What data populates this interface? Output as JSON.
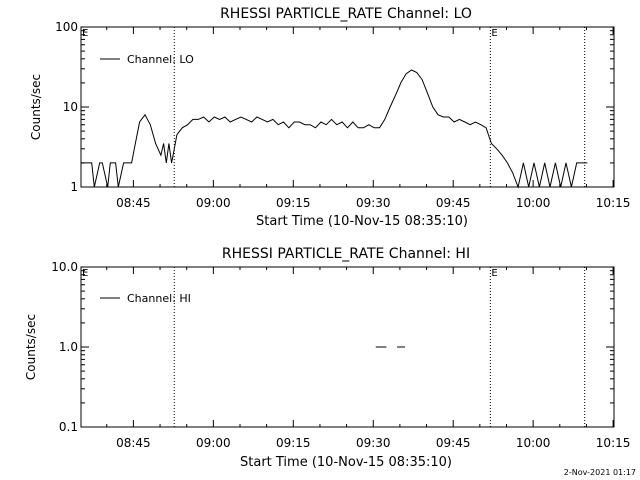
{
  "footer": {
    "timestamp": "2-Nov-2021 01:17"
  },
  "chart_data": [
    {
      "type": "line",
      "title": "RHESSI PARTICLE_RATE Channel: LO",
      "xlabel": "Start Time (10-Nov-15 08:35:10)",
      "ylabel": "Counts/sec",
      "yscale": "log",
      "ylim": [
        1,
        100
      ],
      "y_ticks": [
        1,
        10,
        100
      ],
      "y_tick_labels": [
        "1",
        "10",
        "100"
      ],
      "x_unit": "minutes from 08:35:10",
      "xlim": [
        0,
        100
      ],
      "x_ticks": [
        9.83,
        24.83,
        39.83,
        54.83,
        69.83,
        84.83,
        99.83
      ],
      "x_tick_labels": [
        "08:45",
        "09:00",
        "09:15",
        "09:30",
        "09:45",
        "10:00",
        "10:15"
      ],
      "legend": {
        "label": "Channel: LO",
        "placement": "top-left"
      },
      "vlines_dotted": [
        17.5,
        76.8,
        94.5
      ],
      "markers": [
        {
          "label": "E",
          "x": 0
        },
        {
          "label": "E",
          "x": 76.8
        }
      ],
      "series": [
        {
          "name": "Channel: LO",
          "x": [
            0,
            2,
            2.5,
            3.5,
            4,
            5,
            5.5,
            6.5,
            7,
            8,
            8.5,
            9.5,
            10,
            11,
            12,
            13,
            14,
            15,
            15.5,
            16,
            16.5,
            17,
            17.5,
            18,
            19,
            20,
            21,
            22,
            23,
            24,
            25,
            26,
            27,
            28,
            29,
            30,
            31,
            32,
            33,
            34,
            35,
            36,
            37,
            38,
            39,
            40,
            41,
            42,
            43,
            44,
            45,
            46,
            47,
            48,
            49,
            50,
            51,
            52,
            53,
            54,
            55,
            56,
            57,
            58,
            59,
            60,
            61,
            62,
            63,
            64,
            65,
            66,
            67,
            68,
            69,
            70,
            71,
            72,
            73,
            74,
            75,
            76,
            77,
            78,
            79,
            80,
            81,
            82,
            83,
            84,
            85,
            86,
            87,
            88,
            89,
            90,
            91,
            92,
            93,
            94,
            95
          ],
          "y": [
            2,
            2,
            1,
            2,
            2,
            1,
            2,
            2,
            1,
            2,
            2,
            2,
            3,
            6.5,
            8,
            6,
            3.5,
            2.5,
            3.5,
            2,
            3.5,
            2,
            3,
            4.5,
            5.5,
            6,
            7,
            7,
            7.5,
            6.5,
            7.5,
            7,
            7.5,
            6.5,
            7,
            7.5,
            7,
            6.5,
            7.5,
            7,
            6.5,
            7,
            6,
            6.5,
            5.5,
            6.5,
            6.5,
            6,
            6,
            5.5,
            6.5,
            6,
            7,
            6,
            6.5,
            5.5,
            6.5,
            5.5,
            5.5,
            6,
            5.5,
            5.5,
            7,
            10,
            14,
            20,
            26,
            29,
            27,
            22,
            15,
            10,
            8,
            7.5,
            7.5,
            6.5,
            7,
            6.5,
            6,
            6.5,
            6,
            5.5,
            3.5,
            3,
            2.5,
            2,
            1.5,
            1,
            2,
            1,
            2,
            1,
            2,
            1,
            2,
            1,
            2,
            1,
            2,
            2,
            2
          ]
        }
      ]
    },
    {
      "type": "line",
      "title": "RHESSI PARTICLE_RATE Channel: HI",
      "xlabel": "Start Time (10-Nov-15 08:35:10)",
      "ylabel": "Counts/sec",
      "yscale": "log",
      "ylim": [
        0.1,
        10
      ],
      "y_ticks": [
        0.1,
        1,
        10
      ],
      "y_tick_labels": [
        "0.1",
        "1.0",
        "10.0"
      ],
      "x_unit": "minutes from 08:35:10",
      "xlim": [
        0,
        100
      ],
      "x_ticks": [
        9.83,
        24.83,
        39.83,
        54.83,
        69.83,
        84.83,
        99.83
      ],
      "x_tick_labels": [
        "08:45",
        "09:00",
        "09:15",
        "09:30",
        "09:45",
        "10:00",
        "10:15"
      ],
      "legend": {
        "label": "Channel: HI",
        "placement": "top-left"
      },
      "vlines_dotted": [
        17.5,
        76.8,
        94.5
      ],
      "markers": [
        {
          "label": "E",
          "x": 0
        },
        {
          "label": "E",
          "x": 76.8
        }
      ],
      "series": [
        {
          "name": "Channel: HI",
          "segments": [
            {
              "x": [
                55.3,
                57.3
              ],
              "y": [
                1,
                1
              ]
            },
            {
              "x": [
                59.3,
                60.8
              ],
              "y": [
                1,
                1
              ]
            }
          ]
        }
      ]
    }
  ]
}
